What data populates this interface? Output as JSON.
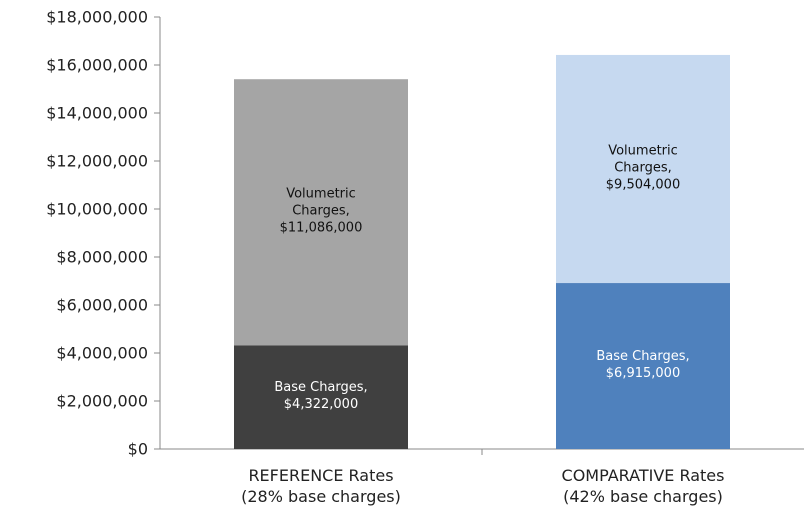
{
  "chart_data": {
    "type": "stacked_bar",
    "categories": [
      "REFERENCE Rates\n(28% base charges)",
      "COMPARATIVE Rates\n(42% base charges)"
    ],
    "series": [
      {
        "name": "Base Charges",
        "colors": [
          "#404040",
          "#4f81bd"
        ],
        "values": [
          4322000,
          6915000
        ],
        "value_labels": [
          "Base Charges,\n$4,322,000",
          "Base Charges,\n$6,915,000"
        ]
      },
      {
        "name": "Volumetric Charges",
        "colors": [
          "#a5a5a5",
          "#c6d9f0"
        ],
        "values": [
          11086000,
          9504000
        ],
        "value_labels": [
          "Volumetric\nCharges,\n$11,086,000",
          "Volumetric\nCharges,\n$9,504,000"
        ]
      }
    ],
    "ylim": [
      0,
      18000000
    ],
    "yticks": [
      {
        "value": 0,
        "label": "$0"
      },
      {
        "value": 2000000,
        "label": "$2,000,000"
      },
      {
        "value": 4000000,
        "label": "$4,000,000"
      },
      {
        "value": 6000000,
        "label": "$6,000,000"
      },
      {
        "value": 8000000,
        "label": "$8,000,000"
      },
      {
        "value": 10000000,
        "label": "$10,000,000"
      },
      {
        "value": 12000000,
        "label": "$12,000,000"
      },
      {
        "value": 14000000,
        "label": "$14,000,000"
      },
      {
        "value": 16000000,
        "label": "$16,000,000"
      },
      {
        "value": 18000000,
        "label": "$18,000,000"
      }
    ]
  }
}
